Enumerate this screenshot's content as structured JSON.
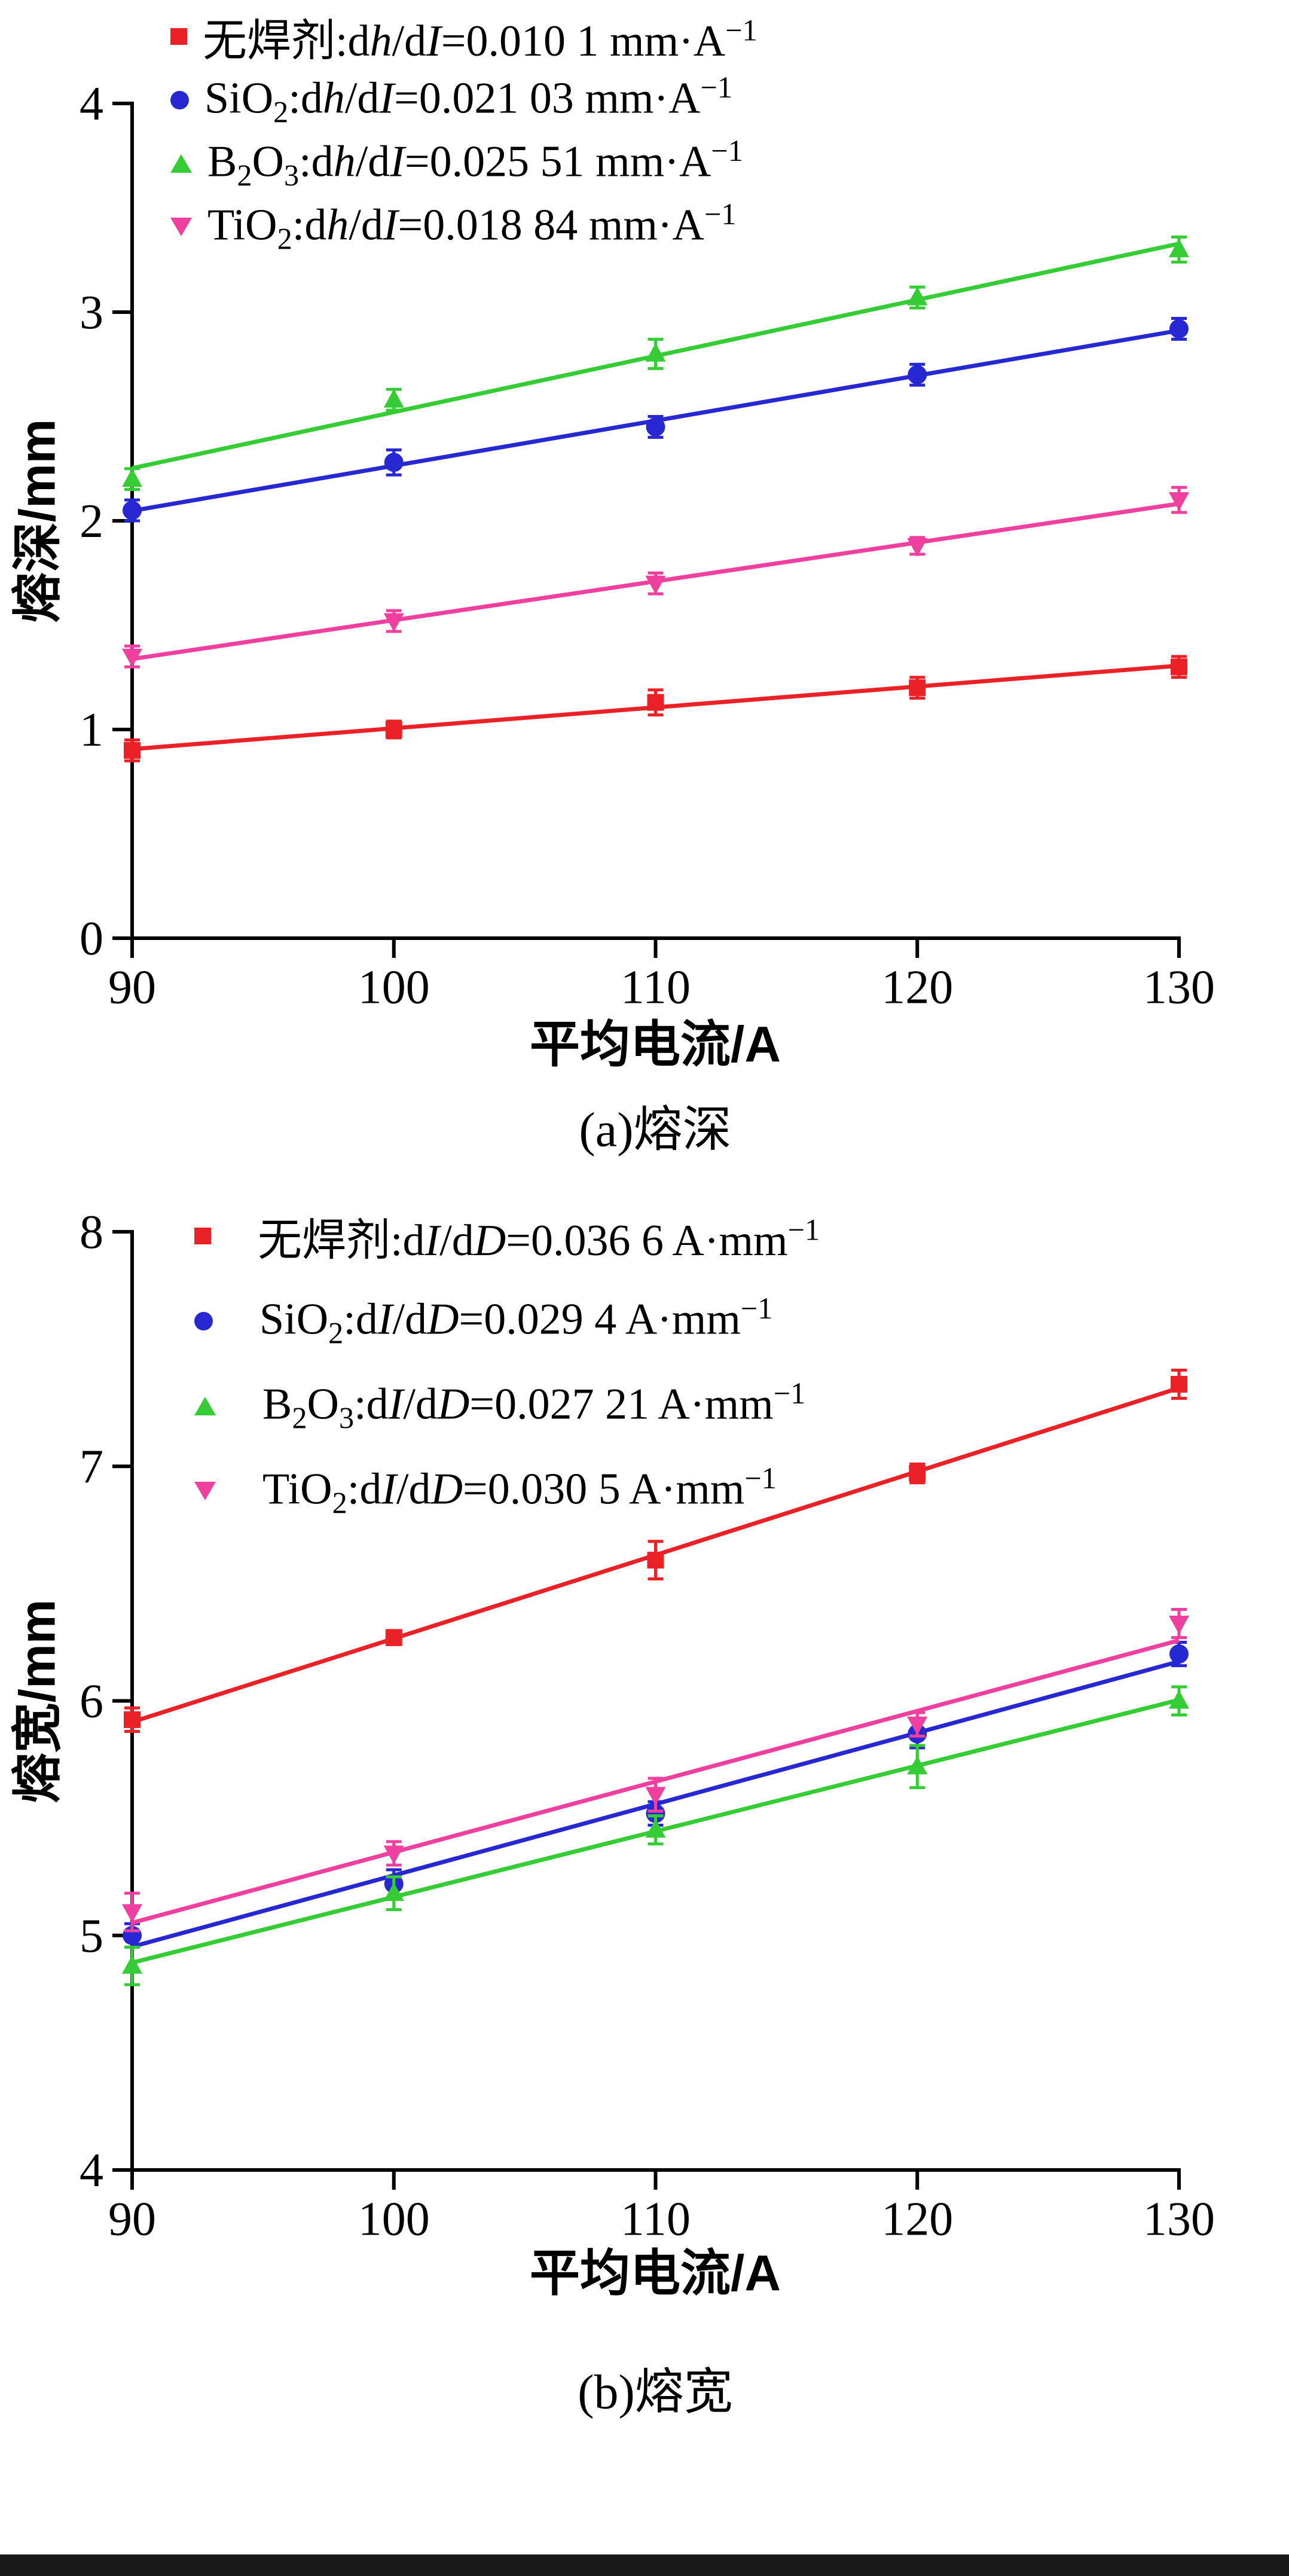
{
  "page": {
    "background": "#ffffff",
    "bottom_bar_color": "#191919"
  },
  "chart_data": [
    {
      "id": "a",
      "type": "scatter",
      "caption": "(a)熔深",
      "xlabel": "平均电流/A",
      "ylabel": "熔深/mm",
      "xlim": [
        90,
        130
      ],
      "ylim": [
        0,
        4
      ],
      "xticks": [
        90,
        100,
        110,
        120,
        130
      ],
      "yticks": [
        0,
        1,
        2,
        3,
        4
      ],
      "x": [
        90,
        100,
        110,
        120,
        130
      ],
      "grid": false,
      "legend_position": "top-left-inside",
      "fit_lines": true,
      "series": [
        {
          "name": "无焊剂",
          "marker": "square",
          "color": "#ea2228",
          "label_html": "无焊剂:d<i>h</i>/d<i>I</i>=0.010 1 mm·A<sup>−1</sup>",
          "slope_label": "0.010 1 mm·A−1",
          "values": [
            0.9,
            1.0,
            1.13,
            1.2,
            1.3
          ],
          "errors": [
            0.05,
            0.04,
            0.06,
            0.05,
            0.05
          ]
        },
        {
          "name": "SiO2",
          "marker": "circle",
          "color": "#2828d2",
          "label_html": "SiO<sub>2</sub>:d<i>h</i>/d<i>I</i>=0.021 03 mm·A<sup>−1</sup>",
          "slope_label": "0.021 03 mm·A−1",
          "values": [
            2.05,
            2.28,
            2.45,
            2.7,
            2.92
          ],
          "errors": [
            0.05,
            0.06,
            0.05,
            0.05,
            0.05
          ]
        },
        {
          "name": "B2O3",
          "marker": "triangle-up",
          "color": "#35cc35",
          "label_html": "B<sub>2</sub>O<sub>3</sub>:d<i>h</i>/d<i>I</i>=0.025 51 mm·A<sup>−1</sup>",
          "slope_label": "0.025 51 mm·A−1",
          "values": [
            2.2,
            2.58,
            2.8,
            3.07,
            3.3
          ],
          "errors": [
            0.05,
            0.05,
            0.07,
            0.05,
            0.06
          ]
        },
        {
          "name": "TiO2",
          "marker": "triangle-down",
          "color": "#f0409f",
          "label_html": "TiO<sub>2</sub>:d<i>h</i>/d<i>I</i>=0.018 84 mm·A<sup>−1</sup>",
          "slope_label": "0.018 84 mm·A−1",
          "values": [
            1.35,
            1.52,
            1.7,
            1.88,
            2.1
          ],
          "errors": [
            0.05,
            0.05,
            0.05,
            0.04,
            0.06
          ]
        }
      ]
    },
    {
      "id": "b",
      "type": "scatter",
      "caption": "(b)熔宽",
      "xlabel": "平均电流/A",
      "ylabel": "熔宽/mm",
      "xlim": [
        90,
        130
      ],
      "ylim": [
        4,
        8
      ],
      "xticks": [
        90,
        100,
        110,
        120,
        130
      ],
      "yticks": [
        4,
        5,
        6,
        7,
        8
      ],
      "x": [
        90,
        100,
        110,
        120,
        130
      ],
      "grid": false,
      "legend_position": "top-left-inside",
      "fit_lines": true,
      "series": [
        {
          "name": "无焊剂",
          "marker": "square",
          "color": "#ea2228",
          "label_html": "无焊剂:d<i>I</i>/d<i>D</i>=0.036 6 A·mm<sup>−1</sup>",
          "slope_label": "0.036 6 A·mm−1",
          "values": [
            5.92,
            6.27,
            6.6,
            6.97,
            7.35
          ],
          "errors": [
            0.05,
            0.03,
            0.08,
            0.04,
            0.06
          ]
        },
        {
          "name": "SiO2",
          "marker": "circle",
          "color": "#2828d2",
          "label_html": "SiO<sub>2</sub>:d<i>I</i>/d<i>D</i>=0.029 4 A·mm<sup>−1</sup>",
          "slope_label": "0.029 4 A·mm−1",
          "values": [
            5.0,
            5.22,
            5.52,
            5.86,
            6.2
          ],
          "errors": [
            0.05,
            0.06,
            0.05,
            0.06,
            0.05
          ]
        },
        {
          "name": "B2O3",
          "marker": "triangle-up",
          "color": "#35cc35",
          "label_html": "B<sub>2</sub>O<sub>3</sub>:d<i>I</i>/d<i>D</i>=0.027 21 A·mm<sup>−1</sup>",
          "slope_label": "0.027 21 A·mm−1",
          "values": [
            4.87,
            5.18,
            5.45,
            5.72,
            6.0
          ],
          "errors": [
            0.08,
            0.07,
            0.06,
            0.09,
            0.06
          ]
        },
        {
          "name": "TiO2",
          "marker": "triangle-down",
          "color": "#f0409f",
          "label_html": "TiO<sub>2</sub>:d<i>I</i>/d<i>D</i>=0.030 5 A·mm<sup>−1</sup>",
          "slope_label": "0.030 5 A·mm−1",
          "values": [
            5.1,
            5.35,
            5.6,
            5.9,
            6.33
          ],
          "errors": [
            0.08,
            0.05,
            0.07,
            0.05,
            0.06
          ]
        }
      ]
    }
  ]
}
